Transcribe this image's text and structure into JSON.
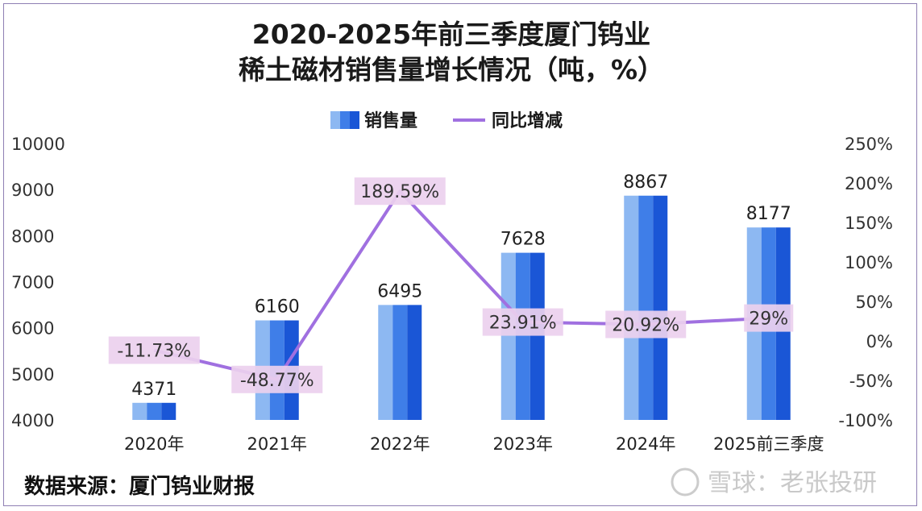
{
  "chart_data": {
    "type": "bar",
    "title": [
      "2020-2025年前三季度厦门钨业",
      "稀土磁材销售量增长情况（吨，%）"
    ],
    "categories": [
      "2020年",
      "2021年",
      "2022年",
      "2023年",
      "2024年",
      "2025前三季度"
    ],
    "series": [
      {
        "name": "销售量",
        "type": "bar",
        "axis": "left",
        "values": [
          4371,
          6160,
          6495,
          7628,
          8867,
          8177
        ]
      },
      {
        "name": "同比增减",
        "type": "line",
        "axis": "right",
        "values": [
          -11.73,
          -48.77,
          189.59,
          23.91,
          20.92,
          29
        ]
      }
    ],
    "bar_labels": [
      "4371",
      "6160",
      "6495",
      "7628",
      "8867",
      "8177"
    ],
    "line_labels": [
      "-11.73%",
      "-48.77%",
      "189.59%",
      "23.91%",
      "20.92%",
      "29%"
    ],
    "y_left": {
      "min": 4000,
      "max": 10000,
      "ticks": [
        "4000",
        "5000",
        "6000",
        "7000",
        "8000",
        "9000",
        "10000"
      ]
    },
    "y_right": {
      "min": -100,
      "max": 250,
      "ticks": [
        "-100%",
        "-50%",
        "0%",
        "50%",
        "100%",
        "150%",
        "200%",
        "250%"
      ]
    },
    "grid": false,
    "legend_position": "top-center",
    "colors": {
      "bar_light": "#8db8f2",
      "bar_mid": "#3f7ee8",
      "bar_dark": "#1a56d6",
      "line": "#a070e0",
      "label_box": "#ecd0ee"
    }
  },
  "source": "数据来源：厦门钨业财报",
  "watermark": "雪球：老张投研"
}
